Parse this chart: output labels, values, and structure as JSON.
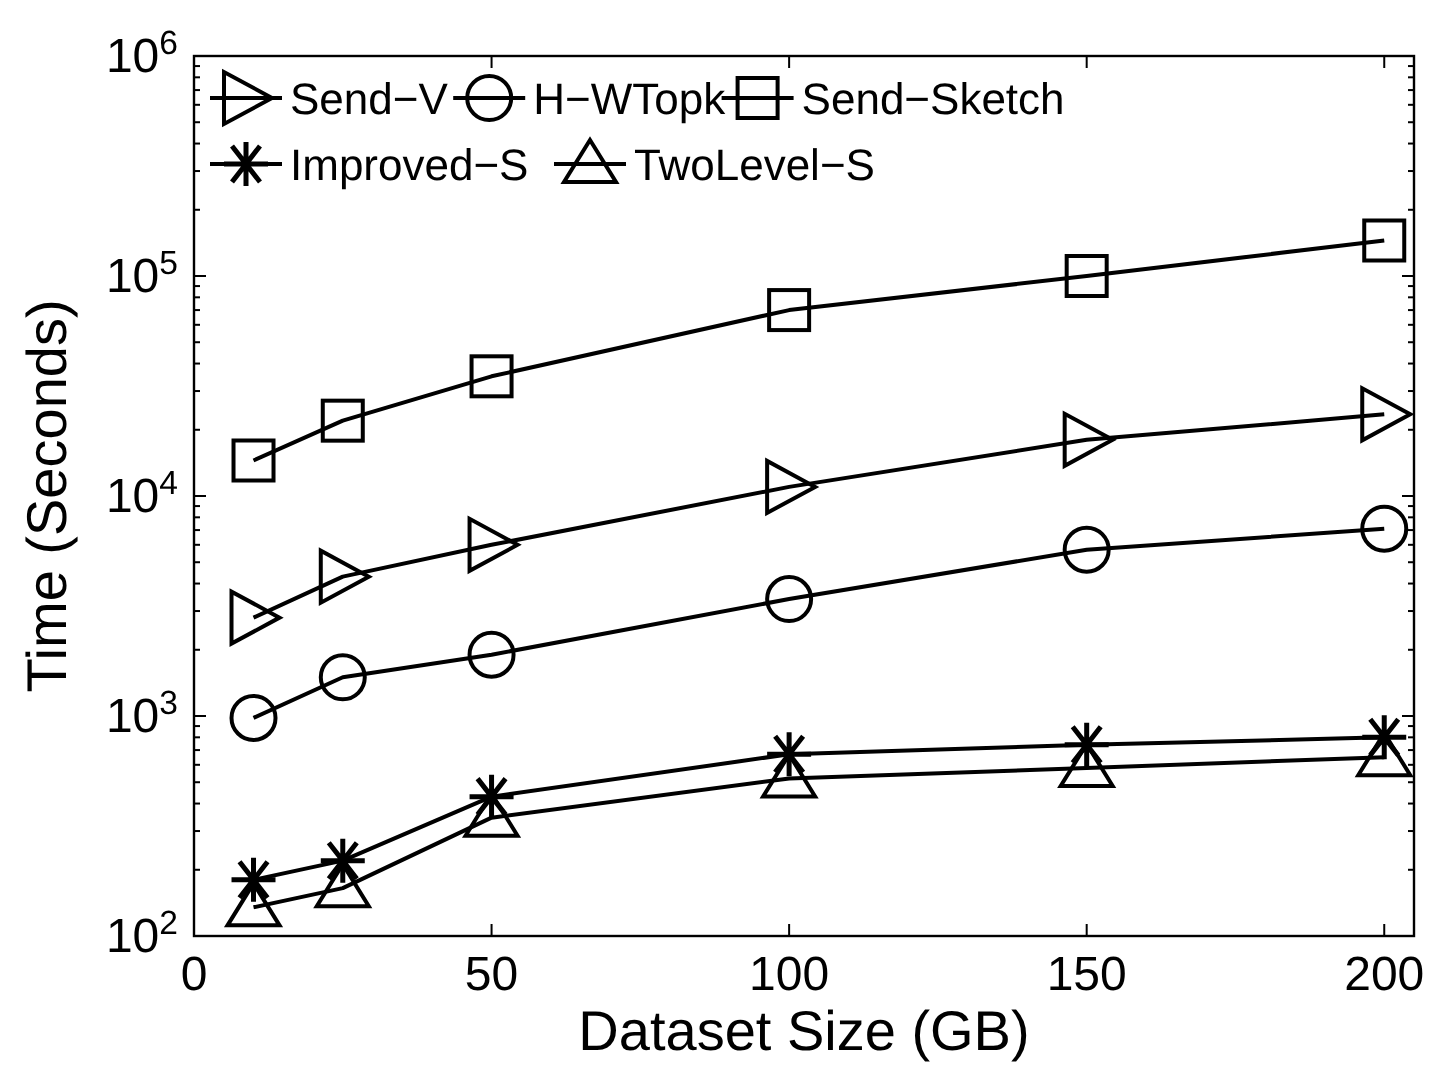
{
  "chart_data": {
    "type": "line",
    "xlabel": "Dataset Size (GB)",
    "ylabel": "Time (Seconds)",
    "x": [
      10,
      25,
      50,
      100,
      150,
      200
    ],
    "xlim": [
      0,
      205
    ],
    "xticks": [
      0,
      50,
      100,
      150,
      200
    ],
    "ylim": [
      100,
      1000000
    ],
    "yticks": [
      {
        "value": 100,
        "label": "10$^{2}$"
      },
      {
        "value": 1000,
        "label": "10$^{3}$"
      },
      {
        "value": 10000,
        "label": "10$^{4}$"
      },
      {
        "value": 100000,
        "label": "10$^{5}$"
      },
      {
        "value": 1000000,
        "label": "10$^{6}$"
      }
    ],
    "log": "y",
    "grid": false,
    "legend": "top left",
    "line_style": "solid",
    "series": [
      {
        "name": "Send−V",
        "color": "#000000",
        "marker": "triangle-right",
        "values": [
          2800,
          4300,
          6000,
          11000,
          18000,
          23500
        ]
      },
      {
        "name": "H−WTopk",
        "color": "#000000",
        "marker": "circle",
        "values": [
          980,
          1500,
          1900,
          3400,
          5700,
          7100
        ]
      },
      {
        "name": "Send−Sketch",
        "color": "#000000",
        "marker": "square",
        "values": [
          14500,
          22000,
          35000,
          70000,
          100000,
          145000
        ]
      },
      {
        "name": "Improved−S",
        "color": "#000000",
        "marker": "cross",
        "values": [
          180,
          220,
          430,
          670,
          740,
          800
        ]
      },
      {
        "name": "TwoLevel−S",
        "color": "#000000",
        "marker": "triangle",
        "values": [
          135,
          165,
          345,
          520,
          580,
          650
        ]
      }
    ]
  }
}
